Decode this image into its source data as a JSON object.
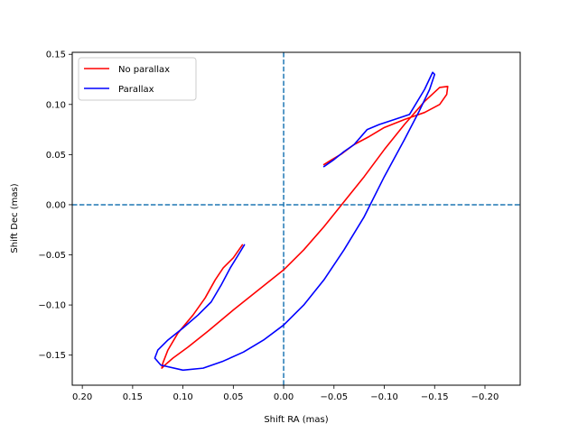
{
  "chart_data": {
    "type": "line",
    "xlabel": "Shift RA (mas)",
    "ylabel": "Shift Dec (mas)",
    "xlim": [
      0.21,
      -0.235
    ],
    "ylim": [
      -0.18,
      0.152
    ],
    "x_ticks": [
      0.2,
      0.15,
      0.1,
      0.05,
      0.0,
      -0.05,
      -0.1,
      -0.15,
      -0.2
    ],
    "x_tick_labels": [
      "0.20",
      "0.15",
      "0.10",
      "0.05",
      "0.00",
      "−0.05",
      "−0.10",
      "−0.15",
      "−0.20"
    ],
    "y_ticks": [
      -0.15,
      -0.1,
      -0.05,
      0.0,
      0.05,
      0.1,
      0.15
    ],
    "y_tick_labels": [
      "−0.15",
      "−0.10",
      "−0.05",
      "0.00",
      "0.05",
      "0.10",
      "0.15"
    ],
    "grid": false,
    "legend_placement": "top-left",
    "reference_lines": [
      {
        "orientation": "vertical",
        "value": 0.0,
        "style": "dashed",
        "color": "#1f77b4"
      },
      {
        "orientation": "horizontal",
        "value": 0.0,
        "style": "dashed",
        "color": "#1f77b4"
      }
    ],
    "series": [
      {
        "name": "No parallax",
        "color": "#ff0000",
        "x": [
          0.041,
          0.05,
          0.06,
          0.068,
          0.078,
          0.09,
          0.105,
          0.115,
          0.12,
          0.121,
          0.118,
          0.11,
          0.095,
          0.075,
          0.05,
          0.025,
          0.0,
          -0.02,
          -0.04,
          -0.06,
          -0.08,
          -0.1,
          -0.12,
          -0.14,
          -0.155,
          -0.163,
          -0.162,
          -0.155,
          -0.14,
          -0.12,
          -0.1,
          -0.085,
          -0.07,
          -0.058,
          -0.048,
          -0.04
        ],
        "y": [
          -0.04,
          -0.053,
          -0.063,
          -0.075,
          -0.093,
          -0.11,
          -0.128,
          -0.145,
          -0.158,
          -0.163,
          -0.16,
          -0.153,
          -0.142,
          -0.126,
          -0.105,
          -0.085,
          -0.065,
          -0.045,
          -0.022,
          0.003,
          0.028,
          0.055,
          0.08,
          0.103,
          0.117,
          0.118,
          0.11,
          0.1,
          0.092,
          0.085,
          0.077,
          0.068,
          0.06,
          0.051,
          0.045,
          0.04
        ]
      },
      {
        "name": "Parallax",
        "color": "#0000ff",
        "x": [
          0.039,
          0.045,
          0.053,
          0.062,
          0.072,
          0.085,
          0.1,
          0.115,
          0.125,
          0.128,
          0.122,
          0.1,
          0.08,
          0.06,
          0.04,
          0.02,
          0.0,
          -0.02,
          -0.04,
          -0.06,
          -0.08,
          -0.1,
          -0.12,
          -0.135,
          -0.145,
          -0.15,
          -0.148,
          -0.14,
          -0.125,
          -0.11,
          -0.095,
          -0.083,
          -0.07,
          -0.06,
          -0.05,
          -0.04
        ],
        "y": [
          -0.04,
          -0.05,
          -0.063,
          -0.08,
          -0.097,
          -0.11,
          -0.123,
          -0.135,
          -0.145,
          -0.153,
          -0.16,
          -0.165,
          -0.163,
          -0.156,
          -0.147,
          -0.135,
          -0.12,
          -0.1,
          -0.075,
          -0.045,
          -0.012,
          0.028,
          0.065,
          0.094,
          0.115,
          0.13,
          0.132,
          0.115,
          0.09,
          0.085,
          0.08,
          0.075,
          0.06,
          0.053,
          0.045,
          0.038
        ]
      }
    ]
  }
}
